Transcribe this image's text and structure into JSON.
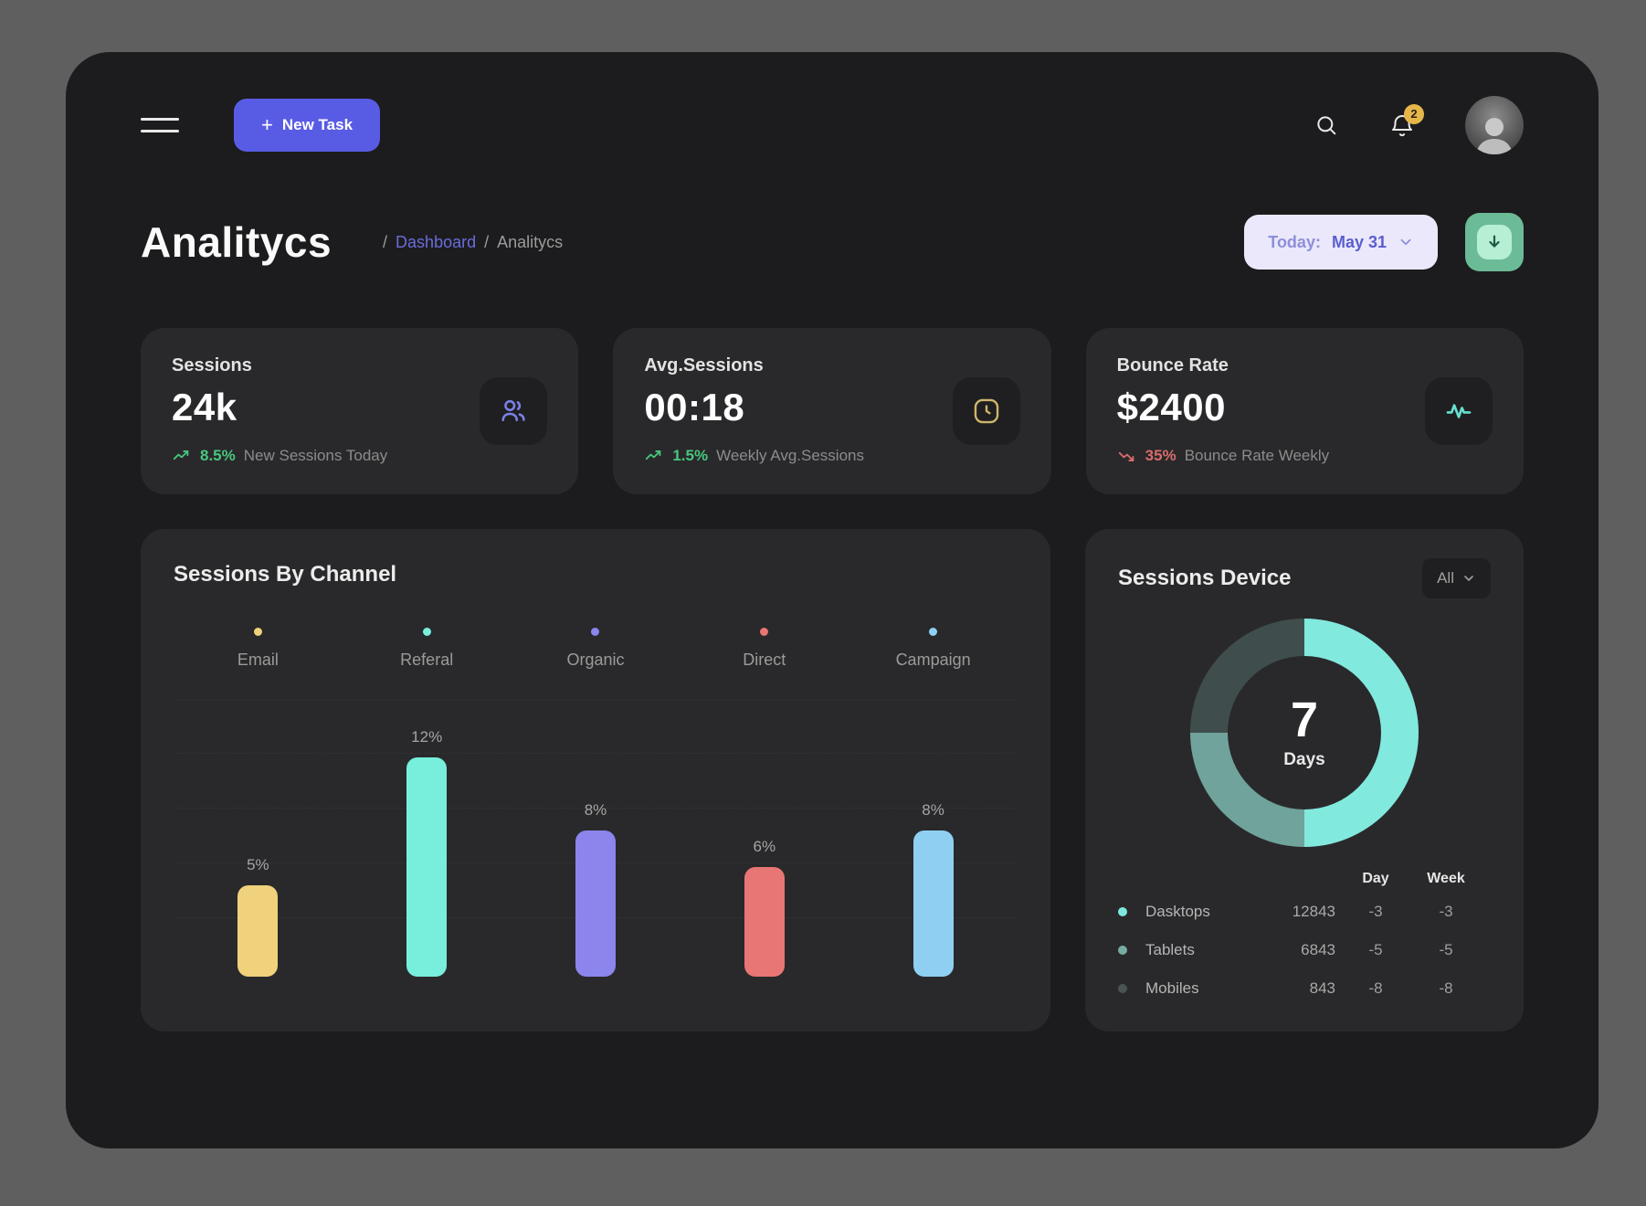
{
  "header": {
    "new_task": {
      "plus": "+",
      "label": "New Task"
    },
    "notifications": {
      "count": "2"
    }
  },
  "page_header": {
    "title": "Analitycs",
    "breadcrumb": {
      "sep1": "/",
      "dashboard": "Dashboard",
      "sep2": "/",
      "current": "Analitycs"
    },
    "date_filter": {
      "prefix": "Today:",
      "value": "May 31"
    }
  },
  "stats": [
    {
      "label": "Sessions",
      "value": "24k",
      "icon": "users",
      "accent": "#7b80e8",
      "trend": "up",
      "percent": "8.5%",
      "note": "New Sessions Today"
    },
    {
      "label": "Avg.Sessions",
      "value": "00:18",
      "icon": "clock",
      "accent": "#cdb56a",
      "trend": "up",
      "percent": "1.5%",
      "note": "Weekly Avg.Sessions"
    },
    {
      "label": "Bounce Rate",
      "value": "$2400",
      "icon": "pulse",
      "accent": "#67e0cf",
      "trend": "down",
      "percent": "35%",
      "note": "Bounce Rate Weekly"
    }
  ],
  "chart_data": [
    {
      "type": "bar",
      "title": "Sessions By Channel",
      "categories": [
        "Email",
        "Referal",
        "Organic",
        "Direct",
        "Campaign"
      ],
      "values": [
        5,
        12,
        8,
        6,
        8
      ],
      "value_labels": [
        "5%",
        "12%",
        "8%",
        "6%",
        "8%"
      ],
      "unit": "%",
      "colors": [
        "#f0d17c",
        "#77efdc",
        "#8b85ec",
        "#e87674",
        "#8fd0f2"
      ],
      "ylim": [
        0,
        12
      ],
      "grid": "dashed-horizontal",
      "legend_position": "top"
    },
    {
      "type": "donut",
      "title": "Sessions Device",
      "filter_label": "All",
      "center": {
        "value": "7",
        "label": "Days"
      },
      "segments": [
        {
          "name": "Desktops",
          "share": 50,
          "color": "#82e9de"
        },
        {
          "name": "Tablets",
          "share": 25,
          "color": "#6fa39b"
        },
        {
          "name": "Mobiles",
          "share": 25,
          "color": "#3f4e4c"
        }
      ],
      "table": {
        "headers": [
          "Day",
          "Week"
        ],
        "rows": [
          {
            "name": "Dasktops",
            "dot": "#7ee8de",
            "value": "12843",
            "day": "-3",
            "week": "-3"
          },
          {
            "name": "Tablets",
            "dot": "#76aca4",
            "value": "6843",
            "day": "-5",
            "week": "-5"
          },
          {
            "name": "Mobiles",
            "dot": "#4a5553",
            "value": "843",
            "day": "-8",
            "week": "-8"
          }
        ]
      }
    }
  ],
  "colors": {
    "canvas": "#1c1c1e",
    "card": "#29292b",
    "accent_indigo": "#585ce5",
    "positive": "#47c67e",
    "negative": "#d96b6b",
    "badge_gold": "#e7b64a",
    "download_green": "#6cbb97"
  }
}
